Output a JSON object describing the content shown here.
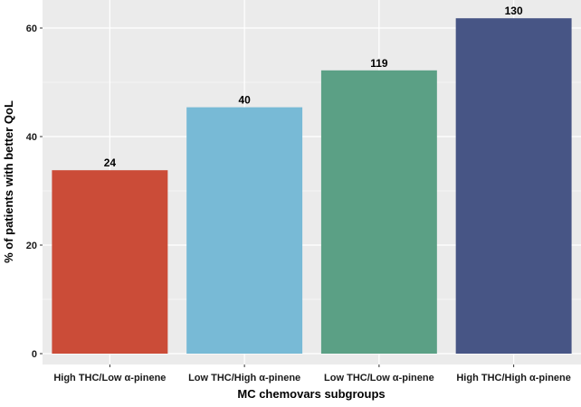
{
  "chart_data": {
    "type": "bar",
    "categories": [
      "High THC/Low α-pinene",
      "Low THC/High α-pinene",
      "Low THC/Low α-pinene",
      "High THC/High α-pinene"
    ],
    "values": [
      33.8,
      45.4,
      52.2,
      61.8
    ],
    "data_labels": [
      "24",
      "40",
      "119",
      "130"
    ],
    "bar_colors": [
      "#CB4C38",
      "#78BAD6",
      "#5BA085",
      "#475585"
    ],
    "title": "",
    "xlabel": "MC chemovars subgroups",
    "ylabel": "% of patients with better QoL",
    "ylim": [
      0,
      64.5
    ],
    "yticks": [
      0,
      20,
      40,
      60
    ],
    "grid": true,
    "panel_background": "#EBEBEB",
    "grid_color": "#FFFFFF"
  }
}
